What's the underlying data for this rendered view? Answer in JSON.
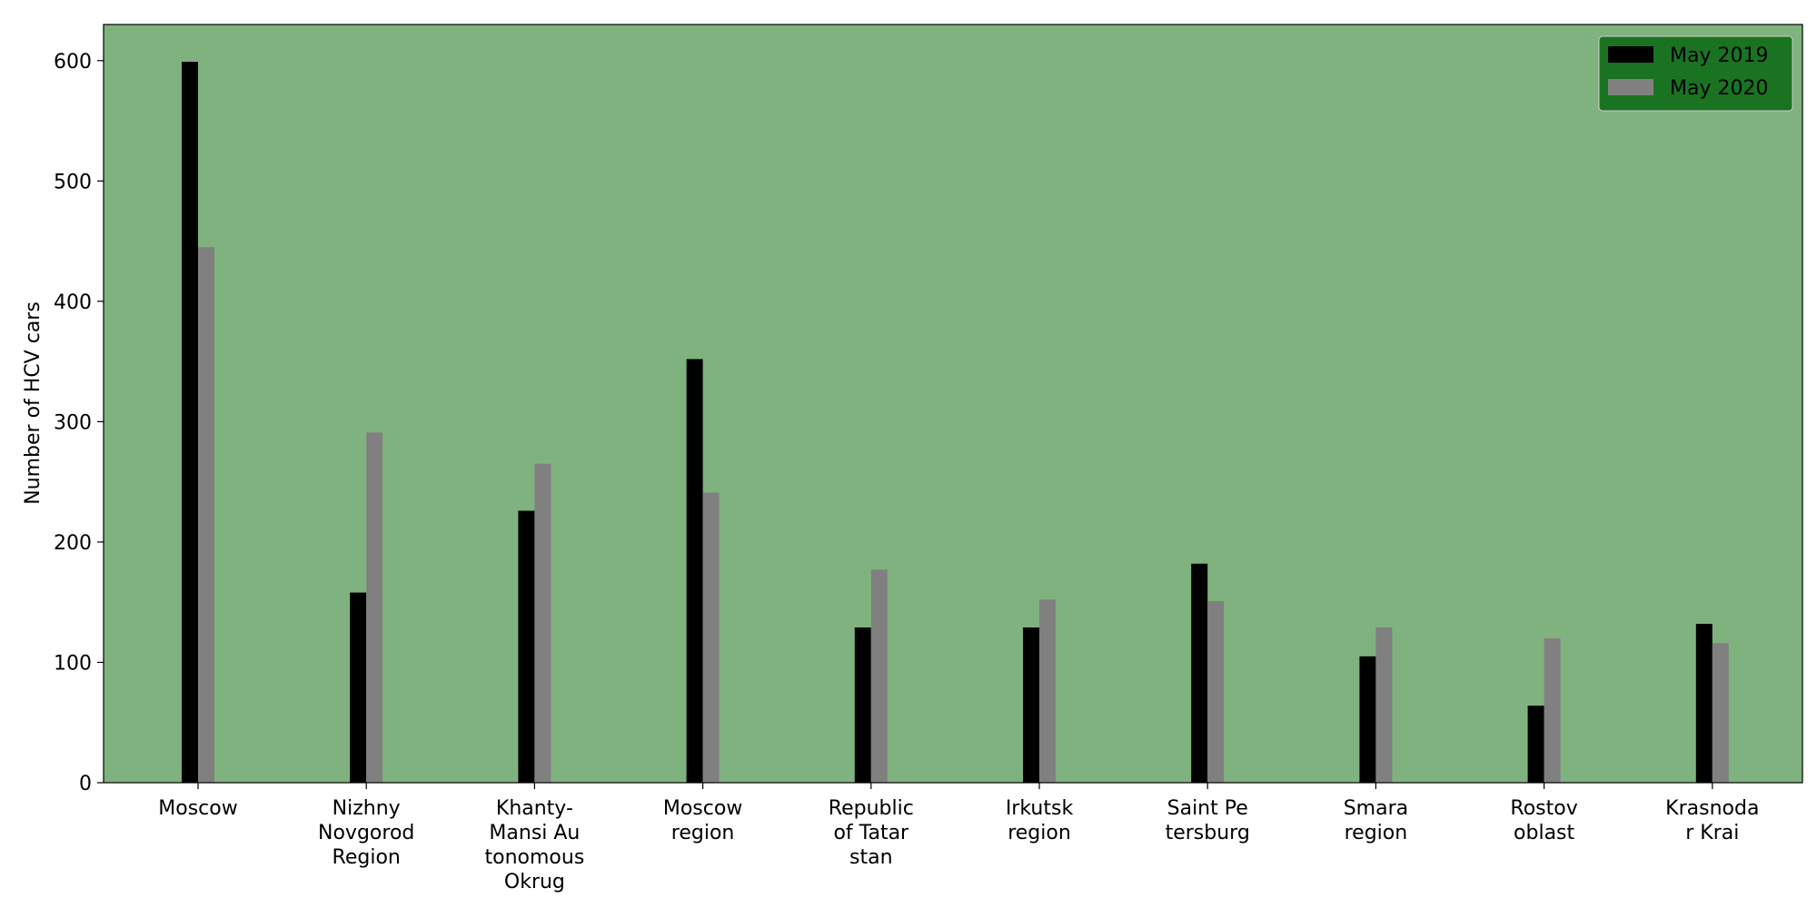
{
  "chart_data": {
    "type": "bar",
    "title": "",
    "xlabel": "",
    "ylabel": "Number of HCV cars",
    "ylim": [
      0,
      630
    ],
    "yticks": [
      0,
      100,
      200,
      300,
      400,
      500,
      600
    ],
    "grid": false,
    "legend_position": "top-right",
    "plot_background": "#80b27f",
    "legend_background": "#1a7320",
    "categories": [
      [
        "Moscow"
      ],
      [
        "Nizhny",
        "Novgorod",
        "Region"
      ],
      [
        "Khanty-",
        "Mansi Au",
        "tonomous",
        "Okrug"
      ],
      [
        "Moscow",
        "region"
      ],
      [
        "Republic",
        "of Tatar",
        "stan"
      ],
      [
        "Irkutsk",
        "region"
      ],
      [
        "Saint Pe",
        "tersburg"
      ],
      [
        "Smara",
        "region"
      ],
      [
        "Rostov",
        "oblast"
      ],
      [
        "Krasnoda",
        "r Krai"
      ]
    ],
    "series": [
      {
        "name": "May 2019",
        "color": "#000000",
        "values": [
          599,
          158,
          226,
          352,
          129,
          129,
          182,
          105,
          64,
          132
        ]
      },
      {
        "name": "May 2020",
        "color": "#808080",
        "values": [
          445,
          291,
          265,
          241,
          177,
          152,
          151,
          129,
          120,
          116
        ]
      }
    ]
  }
}
